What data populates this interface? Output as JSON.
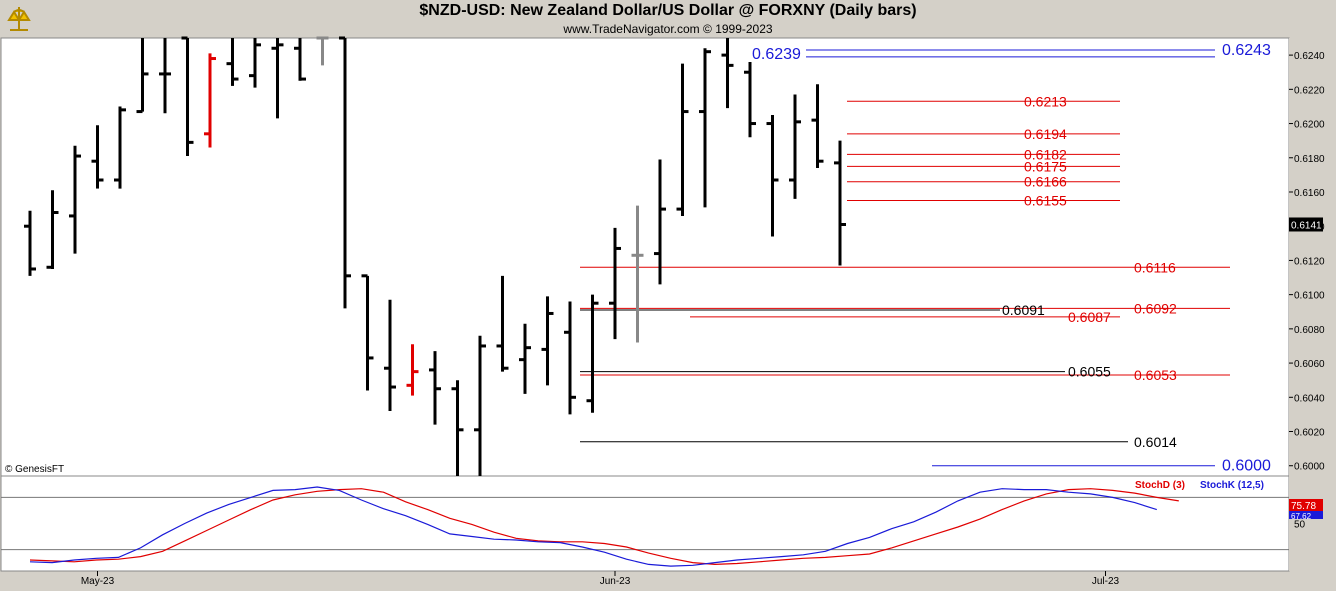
{
  "header": {
    "title": "$NZD-USD:  New Zealand Dollar/US Dollar @ FORXNY  (Daily bars)",
    "subtitle": "www.TradeNavigator.com © 1999-2023"
  },
  "colors": {
    "bar": "#000000",
    "bar_down_highlight": "#e00000",
    "bar_gray": "#888888",
    "level_red": "#e00000",
    "level_blue": "#1a1ad8",
    "level_black": "#000000",
    "stoch_d": "#e00000",
    "stoch_k": "#1a1ad8",
    "price_tag_bg": "#000000"
  },
  "chart_data": [
    {
      "type": "ohlc",
      "title": "$NZD-USD:  New Zealand Dollar/US Dollar @ FORXNY  (Daily bars)",
      "ylim": [
        0.5994,
        0.625
      ],
      "y_ticks": [
        "0.6240",
        "0.6220",
        "0.6200",
        "0.6180",
        "0.6160",
        "0.6140",
        "0.6120",
        "0.6100",
        "0.6080",
        "0.6060",
        "0.6040",
        "0.6020",
        "0.6000"
      ],
      "x_labels": [
        "May-23",
        "Jun-23",
        "Jul-23"
      ],
      "current_price": "0.6141",
      "watermark": "© GenesisFT",
      "bars": [
        {
          "o": 0.614,
          "h": 0.6149,
          "l": 0.6111,
          "c": 0.6115
        },
        {
          "o": 0.6116,
          "h": 0.6161,
          "l": 0.6115,
          "c": 0.6148
        },
        {
          "o": 0.6146,
          "h": 0.6187,
          "l": 0.6124,
          "c": 0.6181
        },
        {
          "o": 0.6178,
          "h": 0.6199,
          "l": 0.6162,
          "c": 0.6167
        },
        {
          "o": 0.6167,
          "h": 0.621,
          "l": 0.6162,
          "c": 0.6208
        },
        {
          "o": 0.6207,
          "h": 0.625,
          "l": 0.6207,
          "c": 0.6229
        },
        {
          "o": 0.6229,
          "h": 0.625,
          "l": 0.6206,
          "c": 0.6229
        },
        {
          "o": 0.625,
          "h": 0.625,
          "l": 0.6181,
          "c": 0.6189
        },
        {
          "o": 0.6194,
          "h": 0.6241,
          "l": 0.6186,
          "c": 0.6238,
          "color": "red"
        },
        {
          "o": 0.6235,
          "h": 0.625,
          "l": 0.6222,
          "c": 0.6226
        },
        {
          "o": 0.6228,
          "h": 0.625,
          "l": 0.6221,
          "c": 0.6246
        },
        {
          "o": 0.6244,
          "h": 0.625,
          "l": 0.6203,
          "c": 0.6246
        },
        {
          "o": 0.6244,
          "h": 0.625,
          "l": 0.6225,
          "c": 0.6226
        },
        {
          "o": 0.625,
          "h": 0.625,
          "l": 0.6234,
          "c": 0.625,
          "color": "gray"
        },
        {
          "o": 0.625,
          "h": 0.625,
          "l": 0.6092,
          "c": 0.6111
        },
        {
          "o": 0.6111,
          "h": 0.6111,
          "l": 0.6044,
          "c": 0.6063
        },
        {
          "o": 0.6057,
          "h": 0.6097,
          "l": 0.6032,
          "c": 0.6046
        },
        {
          "o": 0.6047,
          "h": 0.6071,
          "l": 0.6041,
          "c": 0.6055,
          "color": "red"
        },
        {
          "o": 0.6056,
          "h": 0.6067,
          "l": 0.6024,
          "c": 0.6045
        },
        {
          "o": 0.6045,
          "h": 0.605,
          "l": 0.5994,
          "c": 0.6021
        },
        {
          "o": 0.6021,
          "h": 0.6076,
          "l": 0.5994,
          "c": 0.607
        },
        {
          "o": 0.607,
          "h": 0.6111,
          "l": 0.6055,
          "c": 0.6057
        },
        {
          "o": 0.6062,
          "h": 0.6083,
          "l": 0.6042,
          "c": 0.6069
        },
        {
          "o": 0.6068,
          "h": 0.6099,
          "l": 0.6047,
          "c": 0.6089
        },
        {
          "o": 0.6078,
          "h": 0.6096,
          "l": 0.603,
          "c": 0.604
        },
        {
          "o": 0.6038,
          "h": 0.61,
          "l": 0.6031,
          "c": 0.6095
        },
        {
          "o": 0.6095,
          "h": 0.6139,
          "l": 0.6074,
          "c": 0.6127
        },
        {
          "o": 0.6123,
          "h": 0.6152,
          "l": 0.6072,
          "c": 0.6123,
          "color": "gray"
        },
        {
          "o": 0.6124,
          "h": 0.6179,
          "l": 0.6106,
          "c": 0.615
        },
        {
          "o": 0.615,
          "h": 0.6235,
          "l": 0.6146,
          "c": 0.6207
        },
        {
          "o": 0.6207,
          "h": 0.6244,
          "l": 0.6151,
          "c": 0.6242
        },
        {
          "o": 0.624,
          "h": 0.625,
          "l": 0.6209,
          "c": 0.6234
        },
        {
          "o": 0.623,
          "h": 0.6236,
          "l": 0.6192,
          "c": 0.62
        },
        {
          "o": 0.62,
          "h": 0.6205,
          "l": 0.6134,
          "c": 0.6167
        },
        {
          "o": 0.6167,
          "h": 0.6217,
          "l": 0.6156,
          "c": 0.6201
        },
        {
          "o": 0.6202,
          "h": 0.6223,
          "l": 0.6174,
          "c": 0.6178
        },
        {
          "o": 0.6177,
          "h": 0.619,
          "l": 0.6117,
          "c": 0.6141
        }
      ],
      "levels_red": [
        "0.6213",
        "0.6194",
        "0.6182",
        "0.6175",
        "0.6166",
        "0.6155",
        "0.6116",
        "0.6092",
        "0.6087",
        "0.6053"
      ],
      "levels_blue": [
        "0.6239",
        "0.6243",
        "0.6000"
      ],
      "levels_black": [
        "0.6091",
        "0.6055",
        "0.6014"
      ]
    },
    {
      "type": "line",
      "ylim": [
        0,
        100
      ],
      "y_ticks": [
        "50"
      ],
      "reference_lines": [
        80,
        20
      ],
      "legend": [
        "StochD (3)",
        "StochK (12,5)"
      ],
      "series": [
        {
          "name": "StochD (3)",
          "values": [
            8,
            7,
            6,
            8,
            9,
            12,
            18,
            30,
            42,
            54,
            66,
            77,
            83,
            87,
            89,
            90,
            86,
            75,
            66,
            56,
            49,
            40,
            33,
            30,
            29,
            29,
            27,
            23,
            16,
            10,
            5,
            3,
            4,
            6,
            8,
            10,
            11,
            13,
            15,
            22,
            30,
            38,
            46,
            55,
            66,
            76,
            84,
            89,
            90,
            88,
            85,
            80,
            76
          ]
        },
        {
          "name": "StochK (12,5)",
          "values": [
            6,
            5,
            8,
            10,
            11,
            22,
            37,
            50,
            62,
            72,
            80,
            88,
            89,
            92,
            88,
            77,
            67,
            59,
            49,
            38,
            35,
            32,
            31,
            29,
            28,
            23,
            17,
            9,
            3,
            1,
            2,
            5,
            8,
            10,
            12,
            14,
            18,
            27,
            34,
            44,
            52,
            63,
            76,
            86,
            90,
            89,
            89,
            86,
            84,
            80,
            74,
            66
          ]
        }
      ],
      "last_values": [
        "75.78",
        "67.62"
      ]
    }
  ]
}
